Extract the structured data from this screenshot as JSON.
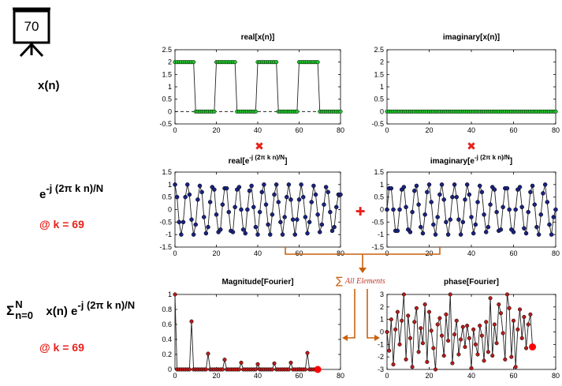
{
  "frame_counter": "70",
  "left_labels": {
    "xn": "x(n)",
    "kernel_base": "e",
    "kernel_exp": "-j (2π k n)/N",
    "k_label_1": "@ k = 69",
    "sum_sigma": "Σ",
    "sum_top": "N",
    "sum_bottom": "n=0",
    "sum_body": " x(n) e",
    "sum_exp": "-j (2π k n)/N",
    "k_label_2": "@ k = 69"
  },
  "operators": {
    "multiply": "✖",
    "plus": "✚",
    "sum_symbol": "∑",
    "sum_text": "All Elements"
  },
  "colors": {
    "green_marker": "#22c22c",
    "blue_marker": "#1a237e",
    "red_marker": "#b71c1c",
    "highlight": "#ff0000",
    "operator_red": "#e8211c",
    "arrow_orange": "#c8620e"
  },
  "chart_data": [
    {
      "id": "real_x",
      "type": "line",
      "title": "real[x(n)]",
      "xlim": [
        0,
        80
      ],
      "ylim": [
        -0.5,
        2.5
      ],
      "xticks": [
        0,
        20,
        40,
        60,
        80
      ],
      "yticks": [
        -0.5,
        0,
        0.5,
        1,
        1.5,
        2,
        2.5
      ],
      "ytick_labels": [
        "-0.5",
        "0",
        "0.5",
        "1",
        "1.5",
        "2",
        "2.5"
      ],
      "x": [
        0,
        1,
        2,
        3,
        4,
        5,
        6,
        7,
        8,
        9,
        10,
        11,
        12,
        13,
        14,
        15,
        16,
        17,
        18,
        19,
        20,
        21,
        22,
        23,
        24,
        25,
        26,
        27,
        28,
        29,
        30,
        31,
        32,
        33,
        34,
        35,
        36,
        37,
        38,
        39,
        40,
        41,
        42,
        43,
        44,
        45,
        46,
        47,
        48,
        49,
        50,
        51,
        52,
        53,
        54,
        55,
        56,
        57,
        58,
        59,
        60,
        61,
        62,
        63,
        64,
        65,
        66,
        67,
        68,
        69,
        70,
        71,
        72,
        73,
        74,
        75,
        76,
        77,
        78,
        79,
        80
      ],
      "values": [
        2,
        2,
        2,
        2,
        2,
        2,
        2,
        2,
        2,
        2,
        0,
        0,
        0,
        0,
        0,
        0,
        0,
        0,
        0,
        0,
        2,
        2,
        2,
        2,
        2,
        2,
        2,
        2,
        2,
        2,
        0,
        0,
        0,
        0,
        0,
        0,
        0,
        0,
        0,
        0,
        2,
        2,
        2,
        2,
        2,
        2,
        2,
        2,
        2,
        2,
        0,
        0,
        0,
        0,
        0,
        0,
        0,
        0,
        0,
        0,
        2,
        2,
        2,
        2,
        2,
        2,
        2,
        2,
        2,
        2,
        0,
        0,
        0,
        0,
        0,
        0,
        0,
        0,
        0,
        0,
        0
      ],
      "zero_line": true
    },
    {
      "id": "imag_x",
      "type": "line",
      "title": "imaginary[x(n)]",
      "xlim": [
        0,
        80
      ],
      "ylim": [
        -0.5,
        2.5
      ],
      "xticks": [
        0,
        20,
        40,
        60,
        80
      ],
      "yticks": [
        -0.5,
        0,
        0.5,
        1,
        1.5,
        2,
        2.5
      ],
      "ytick_labels": [
        "-0.5",
        "0",
        "0.5",
        "1",
        "1.5",
        "2",
        "2.5"
      ],
      "x": [
        0,
        1,
        2,
        3,
        4,
        5,
        6,
        7,
        8,
        9,
        10,
        11,
        12,
        13,
        14,
        15,
        16,
        17,
        18,
        19,
        20,
        21,
        22,
        23,
        24,
        25,
        26,
        27,
        28,
        29,
        30,
        31,
        32,
        33,
        34,
        35,
        36,
        37,
        38,
        39,
        40,
        41,
        42,
        43,
        44,
        45,
        46,
        47,
        48,
        49,
        50,
        51,
        52,
        53,
        54,
        55,
        56,
        57,
        58,
        59,
        60,
        61,
        62,
        63,
        64,
        65,
        66,
        67,
        68,
        69,
        70,
        71,
        72,
        73,
        74,
        75,
        76,
        77,
        78,
        79,
        80
      ],
      "values": [
        0,
        0,
        0,
        0,
        0,
        0,
        0,
        0,
        0,
        0,
        0,
        0,
        0,
        0,
        0,
        0,
        0,
        0,
        0,
        0,
        0,
        0,
        0,
        0,
        0,
        0,
        0,
        0,
        0,
        0,
        0,
        0,
        0,
        0,
        0,
        0,
        0,
        0,
        0,
        0,
        0,
        0,
        0,
        0,
        0,
        0,
        0,
        0,
        0,
        0,
        0,
        0,
        0,
        0,
        0,
        0,
        0,
        0,
        0,
        0,
        0,
        0,
        0,
        0,
        0,
        0,
        0,
        0,
        0,
        0,
        0,
        0,
        0,
        0,
        0,
        0,
        0,
        0,
        0,
        0,
        0
      ]
    },
    {
      "id": "real_kernel",
      "type": "line",
      "title": "real[e",
      "title_sup": "-j (2π k n)/N",
      "title_end": "]",
      "xlim": [
        0,
        80
      ],
      "ylim": [
        -1.5,
        1.5
      ],
      "xticks": [
        0,
        20,
        40,
        60,
        80
      ],
      "yticks": [
        -1.5,
        -1,
        -0.5,
        0,
        0.5,
        1,
        1.5
      ],
      "ytick_labels": [
        "-1.5",
        "-1",
        "-0.5",
        "0",
        "0.5",
        "1",
        "1.5"
      ],
      "x": [
        0,
        1,
        2,
        3,
        4,
        5,
        6,
        7,
        8,
        9,
        10,
        11,
        12,
        13,
        14,
        15,
        16,
        17,
        18,
        19,
        20,
        21,
        22,
        23,
        24,
        25,
        26,
        27,
        28,
        29,
        30,
        31,
        32,
        33,
        34,
        35,
        36,
        37,
        38,
        39,
        40,
        41,
        42,
        43,
        44,
        45,
        46,
        47,
        48,
        49,
        50,
        51,
        52,
        53,
        54,
        55,
        56,
        57,
        58,
        59,
        60,
        61,
        62,
        63,
        64,
        65,
        66,
        67,
        68,
        69,
        70,
        71,
        72,
        73,
        74,
        75,
        76,
        77,
        78,
        79,
        80
      ],
      "values": [
        1.0,
        0.5,
        -0.5,
        -1.0,
        -0.5,
        0.5,
        1.0,
        0.6,
        -0.4,
        -1.0,
        -0.6,
        0.4,
        0.95,
        0.7,
        -0.3,
        -0.95,
        -0.7,
        0.3,
        0.9,
        0.8,
        -0.2,
        -0.9,
        -0.8,
        0.2,
        0.85,
        0.85,
        -0.1,
        -0.85,
        -0.9,
        0.1,
        0.8,
        0.9,
        0.0,
        -0.8,
        -0.95,
        0.0,
        0.75,
        0.95,
        0.1,
        -0.7,
        -1.0,
        -0.1,
        0.7,
        1.0,
        0.2,
        -0.6,
        -1.0,
        -0.2,
        0.6,
        1.0,
        0.3,
        -0.5,
        -1.0,
        -0.3,
        0.5,
        1.0,
        0.4,
        -0.4,
        -1.0,
        -0.4,
        0.4,
        1.0,
        0.5,
        -0.3,
        -0.95,
        -0.5,
        0.3,
        0.95,
        0.6,
        -0.2,
        -0.9,
        -0.6,
        0.2,
        0.9,
        0.7,
        -0.1,
        -0.85,
        -0.7,
        0.1,
        0.6,
        0.6
      ]
    },
    {
      "id": "imag_kernel",
      "type": "line",
      "title": "imaginary[e",
      "title_sup": "-j (2π k n)/N",
      "title_end": "]",
      "xlim": [
        0,
        80
      ],
      "ylim": [
        -1.5,
        1.5
      ],
      "xticks": [
        0,
        20,
        40,
        60,
        80
      ],
      "yticks": [
        -1.5,
        -1,
        -0.5,
        0,
        0.5,
        1,
        1.5
      ],
      "ytick_labels": [
        "-1.5",
        "-1",
        "-0.5",
        "0",
        "0.5",
        "1",
        "1.5"
      ],
      "x": [
        0,
        1,
        2,
        3,
        4,
        5,
        6,
        7,
        8,
        9,
        10,
        11,
        12,
        13,
        14,
        15,
        16,
        17,
        18,
        19,
        20,
        21,
        22,
        23,
        24,
        25,
        26,
        27,
        28,
        29,
        30,
        31,
        32,
        33,
        34,
        35,
        36,
        37,
        38,
        39,
        40,
        41,
        42,
        43,
        44,
        45,
        46,
        47,
        48,
        49,
        50,
        51,
        52,
        53,
        54,
        55,
        56,
        57,
        58,
        59,
        60,
        61,
        62,
        63,
        64,
        65,
        66,
        67,
        68,
        69,
        70,
        71,
        72,
        73,
        74,
        75,
        76,
        77,
        78,
        79,
        80
      ],
      "values": [
        0.0,
        0.85,
        0.85,
        0.0,
        -0.85,
        -0.85,
        0.0,
        0.8,
        0.9,
        0.1,
        -0.8,
        -0.9,
        -0.1,
        0.75,
        0.95,
        0.2,
        -0.7,
        -0.95,
        -0.2,
        0.7,
        1.0,
        0.3,
        -0.6,
        -1.0,
        -0.3,
        0.6,
        1.0,
        0.4,
        -0.5,
        -1.0,
        -0.4,
        0.5,
        1.0,
        0.5,
        -0.4,
        -1.0,
        -0.5,
        0.4,
        1.0,
        0.6,
        -0.3,
        -0.95,
        -0.6,
        0.3,
        0.95,
        0.7,
        -0.2,
        -0.9,
        -0.7,
        0.2,
        0.9,
        0.8,
        -0.1,
        -0.85,
        -0.8,
        0.1,
        0.85,
        0.85,
        0.0,
        -0.8,
        -0.9,
        0.0,
        0.8,
        0.9,
        0.1,
        -0.75,
        -0.95,
        -0.1,
        0.7,
        0.95,
        0.2,
        -0.7,
        -1.0,
        -0.2,
        0.65,
        1.0,
        0.3,
        -0.6,
        -1.0,
        -0.3,
        0.0
      ]
    },
    {
      "id": "magnitude",
      "type": "line",
      "title": "Magnitude[Fourier]",
      "xlim": [
        0,
        80
      ],
      "ylim": [
        0,
        1
      ],
      "xticks": [
        0,
        20,
        40,
        60,
        80
      ],
      "yticks": [
        0,
        0.2,
        0.4,
        0.6,
        0.8,
        1
      ],
      "ytick_labels": [
        "0",
        "0.2",
        "0.4",
        "0.6",
        "0.8",
        "1"
      ],
      "x": [
        0,
        1,
        2,
        3,
        4,
        5,
        6,
        7,
        8,
        9,
        10,
        11,
        12,
        13,
        14,
        15,
        16,
        17,
        18,
        19,
        20,
        21,
        22,
        23,
        24,
        25,
        26,
        27,
        28,
        29,
        30,
        31,
        32,
        33,
        34,
        35,
        36,
        37,
        38,
        39,
        40,
        41,
        42,
        43,
        44,
        45,
        46,
        47,
        48,
        49,
        50,
        51,
        52,
        53,
        54,
        55,
        56,
        57,
        58,
        59,
        60,
        61,
        62,
        63,
        64,
        65,
        66,
        67,
        68,
        69
      ],
      "values": [
        1.0,
        0,
        0,
        0,
        0,
        0,
        0,
        0,
        0.64,
        0,
        0,
        0,
        0,
        0,
        0,
        0,
        0.21,
        0,
        0,
        0,
        0,
        0,
        0,
        0,
        0.13,
        0,
        0,
        0,
        0,
        0,
        0,
        0,
        0.09,
        0,
        0,
        0,
        0,
        0,
        0,
        0,
        0.07,
        0,
        0,
        0,
        0,
        0,
        0,
        0,
        0.08,
        0,
        0,
        0,
        0,
        0,
        0,
        0,
        0.09,
        0,
        0,
        0,
        0,
        0,
        0,
        0,
        0.22,
        0,
        0,
        0,
        0,
        0
      ],
      "highlight_index": 69
    },
    {
      "id": "phase",
      "type": "line",
      "title": "phase[Fourier]",
      "xlim": [
        0,
        80
      ],
      "ylim": [
        -3,
        3
      ],
      "xticks": [
        0,
        20,
        40,
        60,
        80
      ],
      "yticks": [
        -3,
        -2,
        -1,
        0,
        1,
        2,
        3
      ],
      "ytick_labels": [
        "-3",
        "-2",
        "-1",
        "0",
        "1",
        "2",
        "3"
      ],
      "x": [
        0,
        1,
        2,
        3,
        4,
        5,
        6,
        7,
        8,
        9,
        10,
        11,
        12,
        13,
        14,
        15,
        16,
        17,
        18,
        19,
        20,
        21,
        22,
        23,
        24,
        25,
        26,
        27,
        28,
        29,
        30,
        31,
        32,
        33,
        34,
        35,
        36,
        37,
        38,
        39,
        40,
        41,
        42,
        43,
        44,
        45,
        46,
        47,
        48,
        49,
        50,
        51,
        52,
        53,
        54,
        55,
        56,
        57,
        58,
        59,
        60,
        61,
        62,
        63,
        64,
        65,
        66,
        67,
        68,
        69
      ],
      "values": [
        0.0,
        -1.5,
        1.0,
        -2.6,
        0.2,
        1.6,
        -1.0,
        0.9,
        3.0,
        -2.2,
        1.3,
        -0.5,
        -2.8,
        0.8,
        1.9,
        -1.6,
        0.3,
        -0.9,
        2.2,
        -2.4,
        1.6,
        0.1,
        -1.3,
        -3.0,
        0.6,
        1.1,
        -0.3,
        -1.9,
        1.4,
        -0.7,
        3.0,
        -2.5,
        -0.2,
        0.9,
        -1.8,
        -0.6,
        0.4,
        -1.2,
        0.5,
        -0.5,
        -2.9,
        0.2,
        -1.0,
        -1.8,
        0.5,
        -0.3,
        -2.3,
        0.8,
        -1.6,
        2.7,
        -1.9,
        0.6,
        -0.9,
        2.2,
        1.5,
        -0.1,
        -2.2,
        3.0,
        1.9,
        -2.0,
        0.9,
        -2.8,
        0.2,
        1.8,
        -0.5,
        1.2,
        -1.3,
        0.6,
        1.4,
        -1.2
      ],
      "highlight_index": 69
    }
  ]
}
